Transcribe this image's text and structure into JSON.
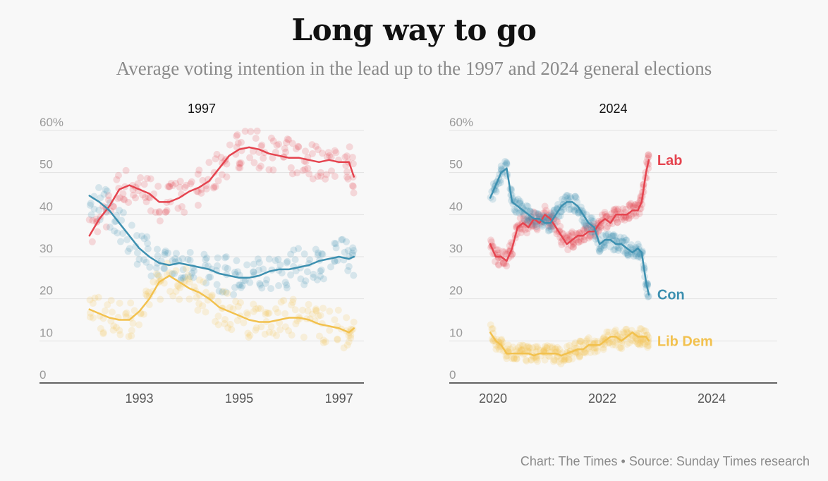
{
  "title": "Long way to go",
  "subtitle": "Average voting intention in the lead up to the 1997 and 2024 general elections",
  "footer": "Chart: The Times • Source: Sunday Times research",
  "colors": {
    "lab": "#e5444f",
    "con": "#3d90b0",
    "libdem": "#f2c14e",
    "grid": "#e2e2e2",
    "axis": "#333333"
  },
  "chart_data": [
    {
      "type": "line",
      "title": "1997",
      "xlim": [
        1991.0,
        1997.5
      ],
      "ylim": [
        0,
        60
      ],
      "yticks": [
        0,
        10,
        20,
        30,
        40,
        50,
        60
      ],
      "ytick_labels": [
        "0",
        "10",
        "20",
        "30",
        "40",
        "50",
        "60%"
      ],
      "xticks": [
        1993,
        1995,
        1997
      ],
      "xtick_labels": [
        "1993",
        "1995",
        "1997"
      ],
      "grid": true,
      "scatter_polls": true,
      "series": [
        {
          "name": "Lab",
          "key": "lab",
          "x": [
            1992.0,
            1992.2,
            1992.4,
            1992.6,
            1992.8,
            1993.0,
            1993.2,
            1993.4,
            1993.6,
            1993.8,
            1994.0,
            1994.2,
            1994.4,
            1994.6,
            1994.8,
            1995.0,
            1995.2,
            1995.4,
            1995.6,
            1995.8,
            1996.0,
            1996.2,
            1996.4,
            1996.6,
            1996.8,
            1997.0,
            1997.2,
            1997.3
          ],
          "y": [
            35,
            39,
            42,
            46,
            47,
            46,
            45,
            43,
            43,
            44,
            45.5,
            46.5,
            48,
            51,
            54,
            55.5,
            56,
            55.5,
            54.5,
            54,
            53.5,
            53.5,
            53,
            52.5,
            53,
            52.5,
            52.5,
            49
          ]
        },
        {
          "name": "Con",
          "key": "con",
          "x": [
            1992.0,
            1992.2,
            1992.4,
            1992.6,
            1992.8,
            1993.0,
            1993.2,
            1993.4,
            1993.6,
            1993.8,
            1994.0,
            1994.2,
            1994.4,
            1994.6,
            1994.8,
            1995.0,
            1995.2,
            1995.4,
            1995.6,
            1995.8,
            1996.0,
            1996.2,
            1996.4,
            1996.6,
            1996.8,
            1997.0,
            1997.2,
            1997.3
          ],
          "y": [
            44.5,
            43,
            41,
            38,
            35,
            32,
            30,
            28.5,
            28,
            28.5,
            28,
            27.5,
            27,
            26,
            25.5,
            25,
            25,
            25.5,
            26.5,
            27,
            27,
            27.5,
            28,
            29,
            29.5,
            30,
            29.5,
            30
          ]
        },
        {
          "name": "Lib Dem",
          "key": "libdem",
          "x": [
            1992.0,
            1992.2,
            1992.4,
            1992.6,
            1992.8,
            1993.0,
            1993.2,
            1993.4,
            1993.6,
            1993.8,
            1994.0,
            1994.2,
            1994.4,
            1994.6,
            1994.8,
            1995.0,
            1995.2,
            1995.4,
            1995.6,
            1995.8,
            1996.0,
            1996.2,
            1996.4,
            1996.6,
            1996.8,
            1997.0,
            1997.2,
            1997.3
          ],
          "y": [
            17.5,
            16.5,
            15.5,
            15,
            15,
            17,
            20,
            24,
            25.5,
            24,
            22.5,
            21.5,
            20,
            18,
            17,
            16,
            15,
            14.5,
            14.5,
            15,
            15.5,
            15.5,
            15,
            14,
            13.5,
            13,
            12,
            13
          ]
        }
      ]
    },
    {
      "type": "line",
      "title": "2024",
      "xlim": [
        2019.2,
        2025.2
      ],
      "ylim": [
        0,
        60
      ],
      "yticks": [
        0,
        10,
        20,
        30,
        40,
        50,
        60
      ],
      "ytick_labels": [
        "0",
        "10",
        "20",
        "30",
        "40",
        "50",
        "60%"
      ],
      "xticks": [
        2020,
        2022,
        2024
      ],
      "xtick_labels": [
        "2020",
        "2022",
        "2024"
      ],
      "grid": true,
      "scatter_polls": true,
      "end_labels": [
        "Lab",
        "Con",
        "Lib Dem"
      ],
      "series": [
        {
          "name": "Lab",
          "key": "lab",
          "x": [
            2019.95,
            2020.05,
            2020.15,
            2020.25,
            2020.35,
            2020.45,
            2020.55,
            2020.65,
            2020.75,
            2020.85,
            2020.95,
            2021.05,
            2021.15,
            2021.25,
            2021.35,
            2021.45,
            2021.55,
            2021.65,
            2021.75,
            2021.85,
            2021.95,
            2022.05,
            2022.15,
            2022.25,
            2022.35,
            2022.45,
            2022.55,
            2022.65,
            2022.72,
            2022.8,
            2022.85
          ],
          "y": [
            33,
            30,
            30,
            29,
            32,
            37,
            38,
            37,
            39,
            38,
            40,
            39,
            37,
            35,
            33,
            34,
            35,
            35,
            36,
            36,
            38,
            39,
            38,
            40,
            40,
            40,
            41,
            41,
            43,
            50,
            53
          ]
        },
        {
          "name": "Con",
          "key": "con",
          "x": [
            2019.95,
            2020.05,
            2020.15,
            2020.25,
            2020.35,
            2020.45,
            2020.55,
            2020.65,
            2020.75,
            2020.85,
            2020.95,
            2021.05,
            2021.15,
            2021.25,
            2021.35,
            2021.45,
            2021.55,
            2021.65,
            2021.75,
            2021.85,
            2021.95,
            2022.05,
            2022.15,
            2022.25,
            2022.35,
            2022.45,
            2022.55,
            2022.65,
            2022.72,
            2022.8,
            2022.85
          ],
          "y": [
            44,
            47,
            50,
            51,
            43,
            42,
            41,
            40,
            39,
            39,
            38,
            38,
            40,
            42,
            43,
            43,
            42,
            40,
            38,
            37,
            33,
            34,
            34,
            33,
            33,
            32,
            31,
            32,
            31,
            24,
            21
          ]
        },
        {
          "name": "Lib Dem",
          "key": "libdem",
          "x": [
            2019.95,
            2020.05,
            2020.15,
            2020.25,
            2020.35,
            2020.45,
            2020.55,
            2020.65,
            2020.75,
            2020.85,
            2020.95,
            2021.05,
            2021.15,
            2021.25,
            2021.35,
            2021.45,
            2021.55,
            2021.65,
            2021.75,
            2021.85,
            2021.95,
            2022.05,
            2022.15,
            2022.25,
            2022.35,
            2022.45,
            2022.55,
            2022.65,
            2022.72,
            2022.8,
            2022.85
          ],
          "y": [
            12,
            10,
            9,
            7,
            7,
            7,
            7,
            7,
            6.5,
            7,
            7,
            7,
            7,
            6.5,
            7,
            7.5,
            8,
            8,
            9,
            9,
            9,
            10,
            11,
            11,
            10,
            11,
            12,
            11,
            11,
            11,
            10
          ]
        }
      ]
    }
  ]
}
